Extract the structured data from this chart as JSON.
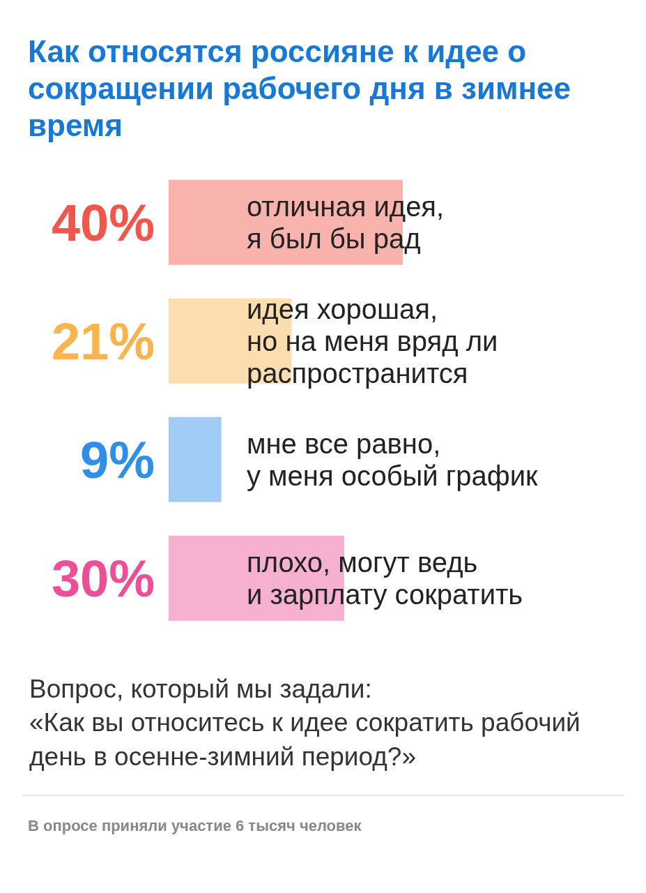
{
  "chart_data": {
    "type": "bar",
    "orientation": "horizontal",
    "title": "Как относятся россияне к идее о сокращении рабочего дня в зимнее время",
    "categories": [
      "отличная идея,\nя был бы рад",
      "идея хорошая,\nно на меня вряд ли\nраспространится",
      "мне все равно,\nу меня особый график",
      "плохо, могут ведь\nи зарплату сократить"
    ],
    "values": [
      40,
      21,
      9,
      30
    ],
    "value_labels": [
      "40%",
      "21%",
      "9%",
      "30%"
    ],
    "colors": [
      "#f0564a",
      "#f9b44f",
      "#2f8fe8",
      "#ea4f97"
    ],
    "annotations": [
      "Вопрос, который мы задали:\n«Как вы относитесь к идее сократить рабочий день в осенне-зимний период?»",
      "В опросе приняли участие 6 тысяч человек"
    ]
  }
}
